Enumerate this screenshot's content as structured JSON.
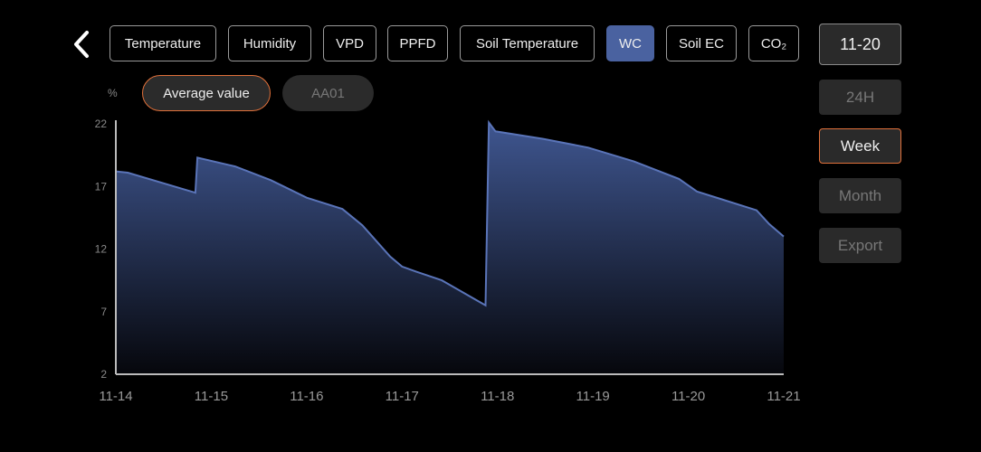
{
  "tabs": [
    {
      "label": "Temperature",
      "active": false
    },
    {
      "label": "Humidity",
      "active": false
    },
    {
      "label": "VPD",
      "active": false
    },
    {
      "label": "PPFD",
      "active": false
    },
    {
      "label": "Soil Temperature",
      "active": false
    },
    {
      "label": "WC",
      "active": true
    },
    {
      "label": "Soil EC",
      "active": false
    },
    {
      "label": "CO₂",
      "active": false
    }
  ],
  "series_pills": [
    {
      "label": "Average value",
      "selected": true
    },
    {
      "label": "AA01",
      "selected": false
    }
  ],
  "unit": "%",
  "side": {
    "date": "11-20",
    "ranges": [
      {
        "label": "24H",
        "selected": false
      },
      {
        "label": "Week",
        "selected": true
      },
      {
        "label": "Month",
        "selected": false
      }
    ],
    "export": "Export"
  },
  "colors": {
    "accent": "#4a62a0",
    "selected_outline": "#e0703a",
    "line": "#5a74b8"
  },
  "chart_data": {
    "type": "area",
    "ylim": [
      2,
      22
    ],
    "yticks": [
      "22",
      "17",
      "12",
      "7",
      "2"
    ],
    "xticks": [
      "11-14",
      "11-15",
      "11-16",
      "11-17",
      "11-18",
      "11-19",
      "11-20",
      "11-21"
    ],
    "xlim": [
      "11-14 00:00",
      "11-21 00:00"
    ],
    "grid": false,
    "series": [
      {
        "name": "Average value",
        "points": [
          [
            "11-14 00:00",
            18.2
          ],
          [
            "11-14 03:00",
            18.1
          ],
          [
            "11-14 20:00",
            16.5
          ],
          [
            "11-14 20:30",
            19.3
          ],
          [
            "11-15 06:00",
            18.6
          ],
          [
            "11-15 15:00",
            17.5
          ],
          [
            "11-16 00:00",
            16.1
          ],
          [
            "11-16 09:00",
            15.2
          ],
          [
            "11-16 14:00",
            13.9
          ],
          [
            "11-16 21:00",
            11.4
          ],
          [
            "11-17 00:00",
            10.6
          ],
          [
            "11-17 03:30",
            10.2
          ],
          [
            "11-17 10:00",
            9.5
          ],
          [
            "11-17 21:00",
            7.5
          ],
          [
            "11-17 21:50",
            22.1
          ],
          [
            "11-17 23:30",
            21.4
          ],
          [
            "11-18 11:30",
            20.8
          ],
          [
            "11-18 22:50",
            20.1
          ],
          [
            "11-19 10:20",
            19.0
          ],
          [
            "11-19 21:40",
            17.6
          ],
          [
            "11-20 02:10",
            16.6
          ],
          [
            "11-20 09:10",
            15.9
          ],
          [
            "11-20 17:10",
            15.1
          ],
          [
            "11-20 20:20",
            14.0
          ],
          [
            "11-21 00:00",
            13.0
          ]
        ]
      }
    ]
  }
}
